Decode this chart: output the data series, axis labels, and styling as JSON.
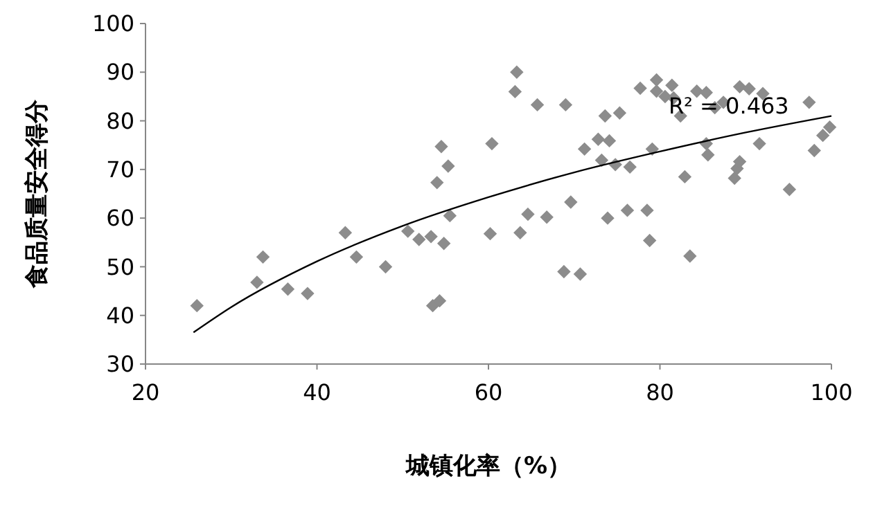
{
  "chart_data": {
    "type": "scatter",
    "xlabel": "城镇化率（%）",
    "ylabel": "食品质量安全得分",
    "xlim": [
      20,
      100
    ],
    "ylim": [
      30,
      100
    ],
    "xticks": [
      20,
      40,
      60,
      80,
      100
    ],
    "yticks": [
      30,
      40,
      50,
      60,
      70,
      80,
      90,
      100
    ],
    "grid": false,
    "marker": "diamond",
    "series": [
      {
        "color": "#8c8c8c",
        "x": [
          26,
          33,
          33.7,
          36.6,
          38.9,
          43.3,
          44.6,
          48,
          50.6,
          51.9,
          53.3,
          54,
          54.8,
          53.5,
          54.3,
          54.5,
          55.3,
          55.5,
          60.2,
          60.4,
          63.3,
          63.1,
          63.7,
          64.6,
          65.7,
          66.8,
          68.8,
          69,
          69.6,
          70.7,
          71.2,
          72.8,
          73.2,
          73.6,
          73.9,
          74.1,
          74.8,
          75.3,
          76.2,
          76.5,
          77.7,
          78.5,
          78.8,
          79.1,
          79.6,
          79.6,
          80.6,
          81.4,
          81.6,
          82.4,
          82.9,
          83.5,
          84.3,
          85.4,
          85.4,
          85.6,
          86.4,
          87.4,
          88.7,
          89,
          89.3,
          89.3,
          90.4,
          91.6,
          92,
          95.1,
          97.4,
          98,
          99,
          99.8
        ],
        "values": [
          42,
          46.8,
          52,
          45.4,
          44.5,
          57,
          52,
          50,
          57.3,
          55.6,
          56.2,
          67.3,
          54.8,
          42,
          43,
          74.7,
          70.7,
          60.5,
          56.8,
          75.3,
          90,
          86,
          57,
          60.8,
          83.3,
          60.2,
          49,
          83.3,
          63.3,
          48.5,
          74.2,
          76.2,
          71.9,
          81,
          60,
          75.9,
          71,
          81.6,
          61.6,
          70.5,
          86.7,
          61.6,
          55.4,
          74.2,
          88.4,
          86.1,
          85,
          87.3,
          84.7,
          81,
          68.5,
          52.2,
          86.1,
          85.8,
          75.3,
          73,
          82.7,
          83.8,
          68.2,
          70.2,
          71.6,
          87,
          86.6,
          75.3,
          85.6,
          65.9,
          83.8,
          73.9,
          77,
          78.7
        ]
      },
      {
        "type": "line",
        "color": "#000000",
        "marker": "none",
        "x": [
          25.6,
          30,
          40,
          50,
          60,
          70,
          80,
          90,
          100
        ],
        "values": [
          36.5,
          41.7,
          51.1,
          58.4,
          64.3,
          69.4,
          73.7,
          77.6,
          81
        ]
      }
    ],
    "annotations": [
      {
        "text": "R² = 0.463",
        "x": 81,
        "y": 81
      }
    ]
  }
}
